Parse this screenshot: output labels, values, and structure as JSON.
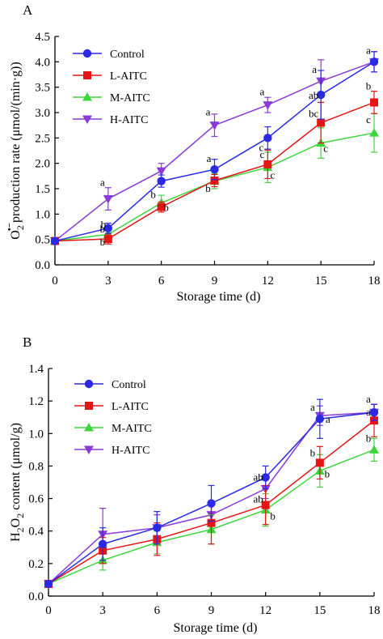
{
  "chart_data": [
    {
      "type": "line",
      "panel_label": "A",
      "xlabel": "Storage time (d)",
      "ylabel_parts": [
        "O",
        "2",
        "•−",
        "production rate (μmol/(min·g))"
      ],
      "x": [
        0,
        3,
        6,
        9,
        12,
        15,
        18
      ],
      "xticks": [
        "0",
        "3",
        "6",
        "9",
        "12",
        "15",
        "18"
      ],
      "xlim": [
        0,
        18
      ],
      "ylim": [
        0,
        4.5
      ],
      "yticks": [
        "0.0",
        "0.5",
        "1.0",
        "1.5",
        "2.0",
        "2.5",
        "3.0",
        "3.5",
        "4.0",
        "4.5"
      ],
      "legend_position": "top-left",
      "series": [
        {
          "name": "Control",
          "color": "#2a2ae6",
          "marker": "circle",
          "values": [
            0.47,
            0.72,
            1.65,
            1.88,
            2.5,
            3.35,
            4.0
          ],
          "errors": [
            0.05,
            0.1,
            0.12,
            0.2,
            0.22,
            0.48,
            0.2
          ],
          "labels": [
            "",
            "b",
            "",
            "a",
            "c",
            "ab",
            "a"
          ]
        },
        {
          "name": "L-AITC",
          "color": "#e61515",
          "marker": "square",
          "values": [
            0.47,
            0.51,
            1.14,
            1.66,
            1.98,
            2.8,
            3.2
          ],
          "errors": [
            0.05,
            0.1,
            0.1,
            0.12,
            0.28,
            0.4,
            0.22
          ],
          "labels": [
            "",
            "b",
            "b",
            "b",
            "c",
            "bc",
            "b"
          ]
        },
        {
          "name": "M-AITC",
          "color": "#3cd63c",
          "marker": "triangle-up",
          "values": [
            0.47,
            0.6,
            1.22,
            1.65,
            1.92,
            2.4,
            2.6
          ],
          "errors": [
            0.05,
            0.1,
            0.15,
            0.15,
            0.3,
            0.3,
            0.38
          ],
          "labels": [
            "",
            "b",
            "b",
            "",
            "c",
            "c",
            "c"
          ]
        },
        {
          "name": "H-AITC",
          "color": "#8a3ad6",
          "marker": "triangle-down",
          "values": [
            0.47,
            1.3,
            1.85,
            2.75,
            3.15,
            3.62,
            4.0
          ],
          "errors": [
            0.05,
            0.22,
            0.15,
            0.22,
            0.15,
            0.42,
            0.2
          ],
          "labels": [
            "",
            "a",
            "",
            "a",
            "a",
            "a",
            ""
          ]
        }
      ]
    },
    {
      "type": "line",
      "panel_label": "B",
      "xlabel": "Storage time (d)",
      "ylabel_parts": [
        "H",
        "2",
        "O",
        "2",
        " content (μmol/g)"
      ],
      "x": [
        0,
        3,
        6,
        9,
        12,
        15,
        18
      ],
      "xticks": [
        "0",
        "3",
        "6",
        "9",
        "12",
        "15",
        "18"
      ],
      "xlim": [
        0,
        18
      ],
      "ylim": [
        0,
        1.4
      ],
      "yticks": [
        "0.0",
        "0.2",
        "0.4",
        "0.6",
        "0.8",
        "1.0",
        "1.2",
        "1.4"
      ],
      "legend_position": "top-left",
      "series": [
        {
          "name": "Control",
          "color": "#2a2ae6",
          "marker": "circle",
          "values": [
            0.075,
            0.32,
            0.42,
            0.57,
            0.73,
            1.09,
            1.13
          ],
          "errors": [
            0.01,
            0.1,
            0.1,
            0.11,
            0.07,
            0.12,
            0.05
          ],
          "labels": [
            "",
            "",
            "",
            "",
            "",
            "a",
            "a"
          ]
        },
        {
          "name": "L-AITC",
          "color": "#e61515",
          "marker": "square",
          "values": [
            0.075,
            0.28,
            0.35,
            0.45,
            0.56,
            0.82,
            1.08
          ],
          "errors": [
            0.01,
            0.08,
            0.1,
            0.13,
            0.12,
            0.1,
            0.1
          ],
          "labels": [
            "",
            "",
            "",
            "",
            "ab",
            "b",
            "a"
          ]
        },
        {
          "name": "M-AITC",
          "color": "#3cd63c",
          "marker": "triangle-up",
          "values": [
            0.075,
            0.22,
            0.33,
            0.41,
            0.53,
            0.77,
            0.9
          ],
          "errors": [
            0.01,
            0.06,
            0.07,
            0.09,
            0.1,
            0.1,
            0.07
          ],
          "labels": [
            "",
            "",
            "",
            "",
            "b",
            "b",
            "b"
          ]
        },
        {
          "name": "H-AITC",
          "color": "#8a3ad6",
          "marker": "triangle-down",
          "values": [
            0.075,
            0.38,
            0.42,
            0.5,
            0.66,
            1.11,
            1.13
          ],
          "errors": [
            0.01,
            0.16,
            0.08,
            0.06,
            0.06,
            0.06,
            0.05
          ],
          "labels": [
            "",
            "",
            "",
            "",
            "ab",
            "a",
            ""
          ]
        }
      ]
    }
  ]
}
